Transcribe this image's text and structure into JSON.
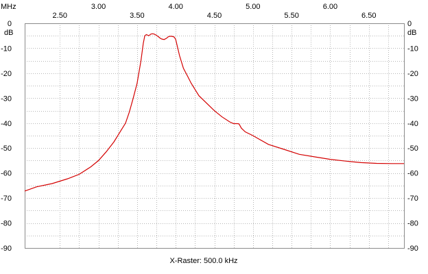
{
  "x_unit_label": "MHz",
  "y_unit_left": "dB",
  "y_unit_right": "dB",
  "footer": "X-Raster: 500.0 kHz",
  "colors": {
    "background": "#ffffff",
    "grid": "#b5b5b5",
    "frame": "#8a8a8a",
    "trace": "#d40000"
  },
  "chart_data": {
    "type": "line",
    "title": "",
    "xlabel": "",
    "ylabel": "dB",
    "xlim": [
      2.045,
      6.955
    ],
    "ylim": [
      -90,
      0
    ],
    "grid": true,
    "x_ticks": [
      {
        "value": 2.5,
        "label": "2.50"
      },
      {
        "value": 3.0,
        "label": "3.00"
      },
      {
        "value": 3.5,
        "label": "3.50"
      },
      {
        "value": 4.0,
        "label": "4.00"
      },
      {
        "value": 4.5,
        "label": "4.50"
      },
      {
        "value": 5.0,
        "label": "5.00"
      },
      {
        "value": 5.5,
        "label": "5.50"
      },
      {
        "value": 6.0,
        "label": "6.00"
      },
      {
        "value": 6.5,
        "label": "6.50"
      }
    ],
    "x_gridlines": [
      2.5,
      2.75,
      3.0,
      3.25,
      3.5,
      3.75,
      4.0,
      4.25,
      4.5,
      4.75,
      5.0,
      5.25,
      5.5,
      5.75,
      6.0,
      6.25,
      6.5,
      6.75
    ],
    "y_ticks": [
      0,
      -10,
      -20,
      -30,
      -40,
      -50,
      -60,
      -70,
      -80,
      -90
    ],
    "y_tick_labels": [
      "0",
      "-10",
      "-20",
      "-30",
      "-40",
      "-50",
      "-60",
      "-70",
      "-80",
      "-90"
    ],
    "y_gridlines": [
      -5,
      -10,
      -15,
      -20,
      -25,
      -30,
      -35,
      -40,
      -45,
      -50,
      -55,
      -60,
      -65,
      -70,
      -75,
      -80,
      -85
    ],
    "series": [
      {
        "x": [
          2.045,
          2.2,
          2.4,
          2.6,
          2.75,
          2.9,
          3.0,
          3.1,
          3.2,
          3.3,
          3.35,
          3.4,
          3.45,
          3.5,
          3.55,
          3.58,
          3.6,
          3.62,
          3.65,
          3.68,
          3.7,
          3.72,
          3.75,
          3.78,
          3.8,
          3.82,
          3.85,
          3.88,
          3.9,
          3.92,
          3.95,
          3.98,
          4.0,
          4.05,
          4.1,
          4.15,
          4.2,
          4.3,
          4.4,
          4.5,
          4.6,
          4.7,
          4.75,
          4.8,
          4.82,
          4.85,
          4.9,
          5.0,
          5.2,
          5.4,
          5.6,
          5.8,
          6.0,
          6.2,
          6.4,
          6.6,
          6.8,
          6.955
        ],
        "y": [
          -67.2,
          -65.5,
          -64.2,
          -62.3,
          -60.5,
          -57.5,
          -55,
          -51.5,
          -47.5,
          -42.5,
          -40,
          -35.5,
          -30,
          -24,
          -15,
          -8,
          -5,
          -4.5,
          -5,
          -4.3,
          -4.2,
          -4.3,
          -4.8,
          -5.5,
          -6,
          -6.3,
          -6.5,
          -6,
          -5.5,
          -5.2,
          -5.2,
          -5.5,
          -6.5,
          -13,
          -18,
          -21,
          -24,
          -29,
          -32,
          -35,
          -37.5,
          -39.5,
          -40.2,
          -40.2,
          -40.3,
          -42,
          -43.5,
          -45,
          -48.5,
          -50.5,
          -52.5,
          -53.5,
          -54.5,
          -55.2,
          -55.8,
          -56.1,
          -56.2,
          -56.2
        ]
      }
    ]
  }
}
